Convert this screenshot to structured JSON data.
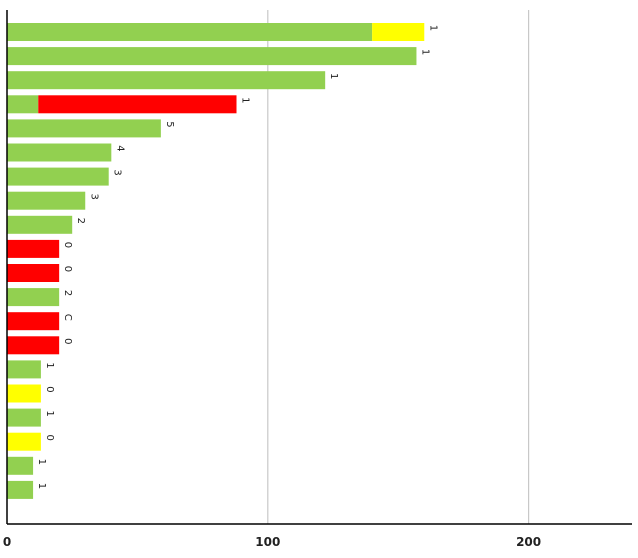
{
  "chart_data": {
    "type": "bar",
    "orientation": "horizontal",
    "stacked": true,
    "title": "",
    "xlabel": "",
    "ylabel": "",
    "xlim": [
      0,
      240
    ],
    "x_ticks": [
      0,
      100,
      200
    ],
    "grid": true,
    "legend": "none",
    "colors": {
      "green": "#92d050",
      "yellow": "#ffff00",
      "red": "#ff0000"
    },
    "bars": [
      {
        "segments": [
          {
            "value": 140,
            "color": "green"
          },
          {
            "value": 20,
            "color": "yellow"
          }
        ],
        "label": "1"
      },
      {
        "segments": [
          {
            "value": 157,
            "color": "green"
          }
        ],
        "label": "1"
      },
      {
        "segments": [
          {
            "value": 122,
            "color": "green"
          }
        ],
        "label": "1"
      },
      {
        "segments": [
          {
            "value": 12,
            "color": "green"
          },
          {
            "value": 76,
            "color": "red"
          }
        ],
        "label": "1"
      },
      {
        "segments": [
          {
            "value": 59,
            "color": "green"
          }
        ],
        "label": "5"
      },
      {
        "segments": [
          {
            "value": 40,
            "color": "green"
          }
        ],
        "label": "4"
      },
      {
        "segments": [
          {
            "value": 39,
            "color": "green"
          }
        ],
        "label": "3"
      },
      {
        "segments": [
          {
            "value": 30,
            "color": "green"
          }
        ],
        "label": "3"
      },
      {
        "segments": [
          {
            "value": 25,
            "color": "green"
          }
        ],
        "label": "2"
      },
      {
        "segments": [
          {
            "value": 20,
            "color": "red"
          }
        ],
        "label": "0"
      },
      {
        "segments": [
          {
            "value": 20,
            "color": "red"
          }
        ],
        "label": "0"
      },
      {
        "segments": [
          {
            "value": 20,
            "color": "green"
          }
        ],
        "label": "2"
      },
      {
        "segments": [
          {
            "value": 20,
            "color": "red"
          }
        ],
        "label": "C"
      },
      {
        "segments": [
          {
            "value": 20,
            "color": "red"
          }
        ],
        "label": "0"
      },
      {
        "segments": [
          {
            "value": 13,
            "color": "green"
          }
        ],
        "label": "1"
      },
      {
        "segments": [
          {
            "value": 13,
            "color": "yellow"
          }
        ],
        "label": "0"
      },
      {
        "segments": [
          {
            "value": 13,
            "color": "green"
          }
        ],
        "label": "1"
      },
      {
        "segments": [
          {
            "value": 13,
            "color": "yellow"
          }
        ],
        "label": "0"
      },
      {
        "segments": [
          {
            "value": 10,
            "color": "green"
          }
        ],
        "label": "1"
      },
      {
        "segments": [
          {
            "value": 10,
            "color": "green"
          }
        ],
        "label": "1"
      }
    ]
  }
}
